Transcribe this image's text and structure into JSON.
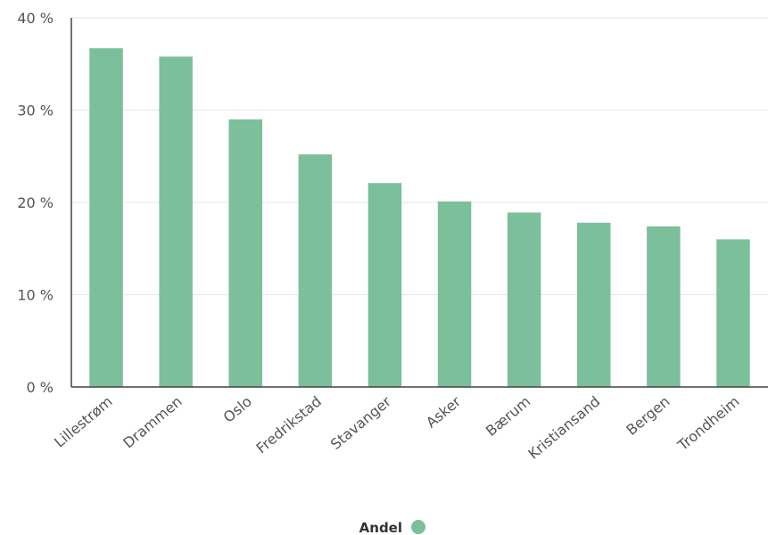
{
  "chart_data": {
    "type": "bar",
    "categories": [
      "Lillestrøm",
      "Drammen",
      "Oslo",
      "Fredrikstad",
      "Stavanger",
      "Asker",
      "Bærum",
      "Kristiansand",
      "Bergen",
      "Trondheim"
    ],
    "series": [
      {
        "name": "Andel",
        "color": "#7bbf9b",
        "values": [
          36.7,
          35.8,
          29.0,
          25.2,
          22.1,
          20.1,
          18.9,
          17.8,
          17.4,
          16.0
        ]
      }
    ],
    "ylim": [
      0,
      40
    ],
    "yticks": [
      0,
      10,
      20,
      30,
      40
    ],
    "ytick_labels": [
      "0 %",
      "10 %",
      "20 %",
      "30 %",
      "40 %"
    ],
    "grid": true,
    "legend_position": "bottom-center"
  },
  "colors": {
    "bar": "#7bbf9b",
    "grid": "#e6e6e6",
    "axis": "#444444"
  }
}
